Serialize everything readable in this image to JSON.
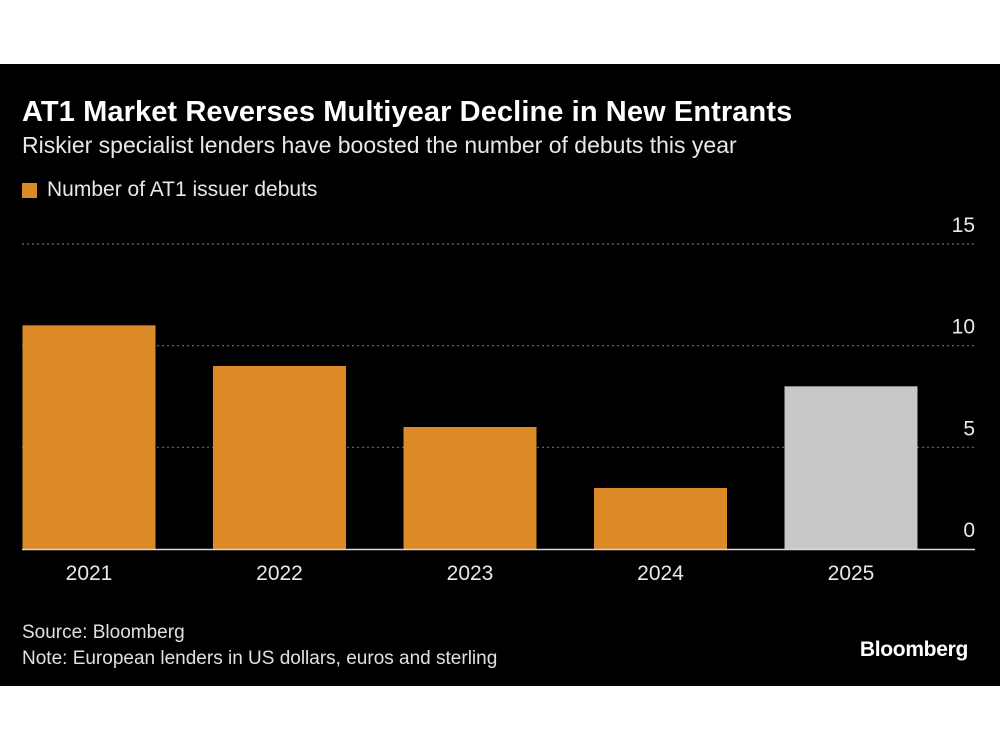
{
  "chart_data": {
    "type": "bar",
    "title": "AT1 Market Reverses Multiyear Decline in New Entrants",
    "subtitle": "Riskier specialist lenders have boosted the number of debuts this year",
    "categories": [
      "2021",
      "2022",
      "2023",
      "2024",
      "2025"
    ],
    "series": [
      {
        "name": "Number of AT1 issuer debuts",
        "values": [
          11,
          9,
          6,
          3,
          8
        ]
      }
    ],
    "ylim": [
      0,
      15
    ],
    "yticks": [
      "0",
      "5",
      "10",
      "15"
    ],
    "ytick_values": [
      0,
      5,
      10,
      15
    ],
    "grid": true,
    "legend_position": "top-left",
    "colors": {
      "series": "#dc8a28",
      "highlight": "#c8c8c8",
      "background": "#000000",
      "grid": "#6e6e6e"
    },
    "highlight_category": "2025"
  },
  "footer": {
    "source": "Source: Bloomberg",
    "note": "Note: European lenders in US dollars, euros and sterling"
  },
  "brand": "Bloomberg"
}
